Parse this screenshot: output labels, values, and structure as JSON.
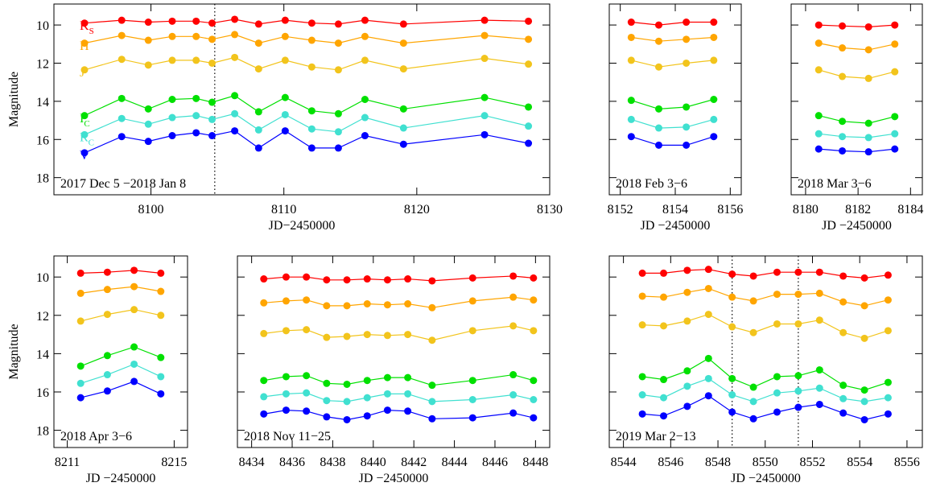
{
  "chart_data": [
    {
      "type": "line",
      "annotation": "2017 Dec 5 −2018 Jan 8",
      "xlabel": "JD−2450000",
      "ylabel": "Magnitude",
      "xlim": [
        8092.7,
        8130
      ],
      "xticks": [
        8100,
        8110,
        8120,
        8130
      ],
      "ylim": [
        18.9,
        8.9
      ],
      "yticks": [
        10,
        12,
        14,
        16,
        18
      ],
      "show_ytick_labels": true,
      "vlines": [
        8104.8
      ],
      "x": [
        8095.0,
        8097.8,
        8099.8,
        8101.6,
        8103.4,
        8104.6,
        8106.3,
        8108.1,
        8110.1,
        8112.1,
        8114.1,
        8116.1,
        8119.0,
        8125.1,
        8128.4
      ],
      "series": [
        {
          "name": "K",
          "subscript": "S",
          "color": "#ff0000",
          "values": [
            9.9,
            9.75,
            9.85,
            9.8,
            9.8,
            9.9,
            9.7,
            9.95,
            9.75,
            9.9,
            9.95,
            9.75,
            9.95,
            9.75,
            9.8
          ]
        },
        {
          "name": "H",
          "color": "#ffa500",
          "values": [
            10.95,
            10.55,
            10.8,
            10.6,
            10.6,
            10.75,
            10.5,
            10.95,
            10.6,
            10.8,
            10.95,
            10.6,
            10.95,
            10.55,
            10.75
          ]
        },
        {
          "name": "J",
          "color": "#f2c41c",
          "values": [
            12.35,
            11.8,
            12.1,
            11.85,
            11.85,
            12.0,
            11.7,
            12.3,
            11.85,
            12.2,
            12.35,
            11.85,
            12.3,
            11.75,
            12.05
          ]
        },
        {
          "name": "I",
          "subscript": "C",
          "color": "#00e000",
          "values": [
            14.75,
            13.85,
            14.4,
            13.9,
            13.85,
            14.05,
            13.7,
            14.55,
            13.8,
            14.5,
            14.65,
            13.9,
            14.4,
            13.8,
            14.3
          ]
        },
        {
          "name": "R",
          "subscript": "C",
          "color": "#40e0d0",
          "values": [
            15.75,
            14.9,
            15.2,
            14.85,
            14.75,
            14.95,
            14.65,
            15.5,
            14.7,
            15.45,
            15.6,
            14.85,
            15.4,
            14.75,
            15.3
          ]
        },
        {
          "name": "V",
          "color": "#0000ff",
          "values": [
            16.7,
            15.85,
            16.1,
            15.8,
            15.65,
            15.8,
            15.55,
            16.45,
            15.55,
            16.45,
            16.45,
            15.8,
            16.25,
            15.75,
            16.2
          ]
        }
      ]
    },
    {
      "type": "line",
      "annotation": "2018 Feb 3−6",
      "xlabel": "JD −2450000",
      "xlim": [
        8151.6,
        8156.4
      ],
      "xticks": [
        8152,
        8154,
        8156
      ],
      "ylim": [
        18.9,
        8.9
      ],
      "yticks": [
        10,
        12,
        14,
        16,
        18
      ],
      "show_ytick_labels": false,
      "x": [
        8152.4,
        8153.4,
        8154.4,
        8155.4
      ],
      "series": [
        {
          "color": "#ff0000",
          "values": [
            9.85,
            10.0,
            9.85,
            9.85
          ]
        },
        {
          "color": "#ffa500",
          "values": [
            10.65,
            10.85,
            10.75,
            10.65
          ]
        },
        {
          "color": "#f2c41c",
          "values": [
            11.85,
            12.2,
            12.0,
            11.85
          ]
        },
        {
          "color": "#00e000",
          "values": [
            13.95,
            14.4,
            14.3,
            13.9
          ]
        },
        {
          "color": "#40e0d0",
          "values": [
            14.95,
            15.4,
            15.35,
            14.95
          ]
        },
        {
          "color": "#0000ff",
          "values": [
            15.85,
            16.3,
            16.3,
            15.85
          ]
        }
      ]
    },
    {
      "type": "line",
      "annotation": "2018 Mar 3−6",
      "xlabel": "JD −2450000",
      "xlim": [
        8179.45,
        8184.45
      ],
      "xticks": [
        8180,
        8182,
        8184
      ],
      "ylim": [
        18.9,
        8.9
      ],
      "yticks": [
        10,
        12,
        14,
        16,
        18
      ],
      "show_ytick_labels": false,
      "x": [
        8180.5,
        8181.4,
        8182.4,
        8183.4
      ],
      "series": [
        {
          "color": "#ff0000",
          "values": [
            10.0,
            10.05,
            10.1,
            10.0
          ]
        },
        {
          "color": "#ffa500",
          "values": [
            10.95,
            11.2,
            11.3,
            11.0
          ]
        },
        {
          "color": "#f2c41c",
          "values": [
            12.35,
            12.7,
            12.8,
            12.45
          ]
        },
        {
          "color": "#00e000",
          "values": [
            14.75,
            15.05,
            15.15,
            14.8
          ]
        },
        {
          "color": "#40e0d0",
          "values": [
            15.7,
            15.85,
            15.9,
            15.7
          ]
        },
        {
          "color": "#0000ff",
          "values": [
            16.5,
            16.6,
            16.65,
            16.5
          ]
        }
      ]
    },
    {
      "type": "line",
      "annotation": "2018 Apr 3−6",
      "xlabel": "JD −2450000",
      "ylabel": "Magnitude",
      "xlim": [
        8210.5,
        8215.5
      ],
      "xticks": [
        8211,
        8215
      ],
      "ylim": [
        18.9,
        8.9
      ],
      "yticks": [
        10,
        12,
        14,
        16,
        18
      ],
      "show_ytick_labels": true,
      "x": [
        8211.5,
        8212.5,
        8213.5,
        8214.5
      ],
      "series": [
        {
          "color": "#ff0000",
          "values": [
            9.8,
            9.75,
            9.65,
            9.8
          ]
        },
        {
          "color": "#ffa500",
          "values": [
            10.85,
            10.65,
            10.5,
            10.75
          ]
        },
        {
          "color": "#f2c41c",
          "values": [
            12.3,
            11.95,
            11.7,
            12.0
          ]
        },
        {
          "color": "#00e000",
          "values": [
            14.65,
            14.1,
            13.65,
            14.2
          ]
        },
        {
          "color": "#40e0d0",
          "values": [
            15.55,
            15.1,
            14.55,
            15.2
          ]
        },
        {
          "color": "#0000ff",
          "values": [
            16.3,
            15.95,
            15.45,
            16.1
          ]
        }
      ]
    },
    {
      "type": "line",
      "annotation": "2018 Nov 11−25",
      "xlabel": "JD −2450000",
      "xlim": [
        8433.3,
        8448.7
      ],
      "xticks": [
        8434,
        8436,
        8438,
        8440,
        8442,
        8444,
        8446,
        8448
      ],
      "ylim": [
        18.9,
        8.9
      ],
      "yticks": [
        10,
        12,
        14,
        16,
        18
      ],
      "show_ytick_labels": false,
      "x": [
        8434.6,
        8435.7,
        8436.7,
        8437.7,
        8438.7,
        8439.7,
        8440.7,
        8441.7,
        8442.9,
        8444.9,
        8446.9,
        8447.9
      ],
      "series": [
        {
          "color": "#ff0000",
          "values": [
            10.1,
            10.0,
            10.0,
            10.15,
            10.15,
            10.1,
            10.15,
            10.1,
            10.2,
            10.05,
            9.95,
            10.05
          ]
        },
        {
          "color": "#ffa500",
          "values": [
            11.35,
            11.25,
            11.2,
            11.5,
            11.5,
            11.4,
            11.45,
            11.4,
            11.6,
            11.25,
            11.05,
            11.2
          ]
        },
        {
          "color": "#f2c41c",
          "values": [
            12.95,
            12.8,
            12.75,
            13.15,
            13.1,
            13.0,
            13.05,
            13.0,
            13.3,
            12.8,
            12.55,
            12.8
          ]
        },
        {
          "color": "#00e000",
          "values": [
            15.4,
            15.2,
            15.15,
            15.55,
            15.6,
            15.4,
            15.25,
            15.25,
            15.65,
            15.4,
            15.1,
            15.4
          ]
        },
        {
          "color": "#40e0d0",
          "values": [
            16.25,
            16.1,
            16.05,
            16.45,
            16.5,
            16.3,
            16.1,
            16.1,
            16.5,
            16.4,
            16.15,
            16.4
          ]
        },
        {
          "color": "#0000ff",
          "values": [
            17.15,
            16.95,
            17.0,
            17.3,
            17.45,
            17.25,
            16.95,
            17.0,
            17.4,
            17.35,
            17.1,
            17.35
          ]
        }
      ]
    },
    {
      "type": "line",
      "annotation": "2019 Mar 2−13",
      "xlabel": "JD −2450000",
      "xlim": [
        8543.4,
        8556.65
      ],
      "xticks": [
        8544,
        8546,
        8548,
        8550,
        8552,
        8554,
        8556
      ],
      "ylim": [
        18.9,
        8.9
      ],
      "yticks": [
        10,
        12,
        14,
        16,
        18
      ],
      "show_ytick_labels": false,
      "vlines": [
        8548.6,
        8551.4
      ],
      "x": [
        8544.8,
        8545.7,
        8546.7,
        8547.6,
        8548.6,
        8549.5,
        8550.5,
        8551.4,
        8552.3,
        8553.3,
        8554.2,
        8555.2
      ],
      "series": [
        {
          "color": "#ff0000",
          "values": [
            9.8,
            9.8,
            9.65,
            9.6,
            9.85,
            9.95,
            9.75,
            9.75,
            9.75,
            9.95,
            10.05,
            9.9
          ]
        },
        {
          "color": "#ffa500",
          "values": [
            11.0,
            11.05,
            10.8,
            10.6,
            11.05,
            11.25,
            10.9,
            10.9,
            10.85,
            11.3,
            11.5,
            11.2
          ]
        },
        {
          "color": "#f2c41c",
          "values": [
            12.5,
            12.55,
            12.3,
            11.95,
            12.6,
            12.9,
            12.45,
            12.45,
            12.25,
            12.9,
            13.2,
            12.8
          ]
        },
        {
          "color": "#00e000",
          "values": [
            15.2,
            15.35,
            14.9,
            14.25,
            15.3,
            15.75,
            15.2,
            15.15,
            14.85,
            15.65,
            15.9,
            15.5
          ]
        },
        {
          "color": "#40e0d0",
          "values": [
            16.15,
            16.3,
            15.7,
            15.3,
            16.15,
            16.5,
            16.05,
            15.95,
            15.8,
            16.35,
            16.5,
            16.3
          ]
        },
        {
          "color": "#0000ff",
          "values": [
            17.15,
            17.25,
            16.75,
            16.2,
            17.05,
            17.4,
            17.05,
            16.8,
            16.65,
            17.1,
            17.45,
            17.15
          ]
        }
      ]
    }
  ]
}
